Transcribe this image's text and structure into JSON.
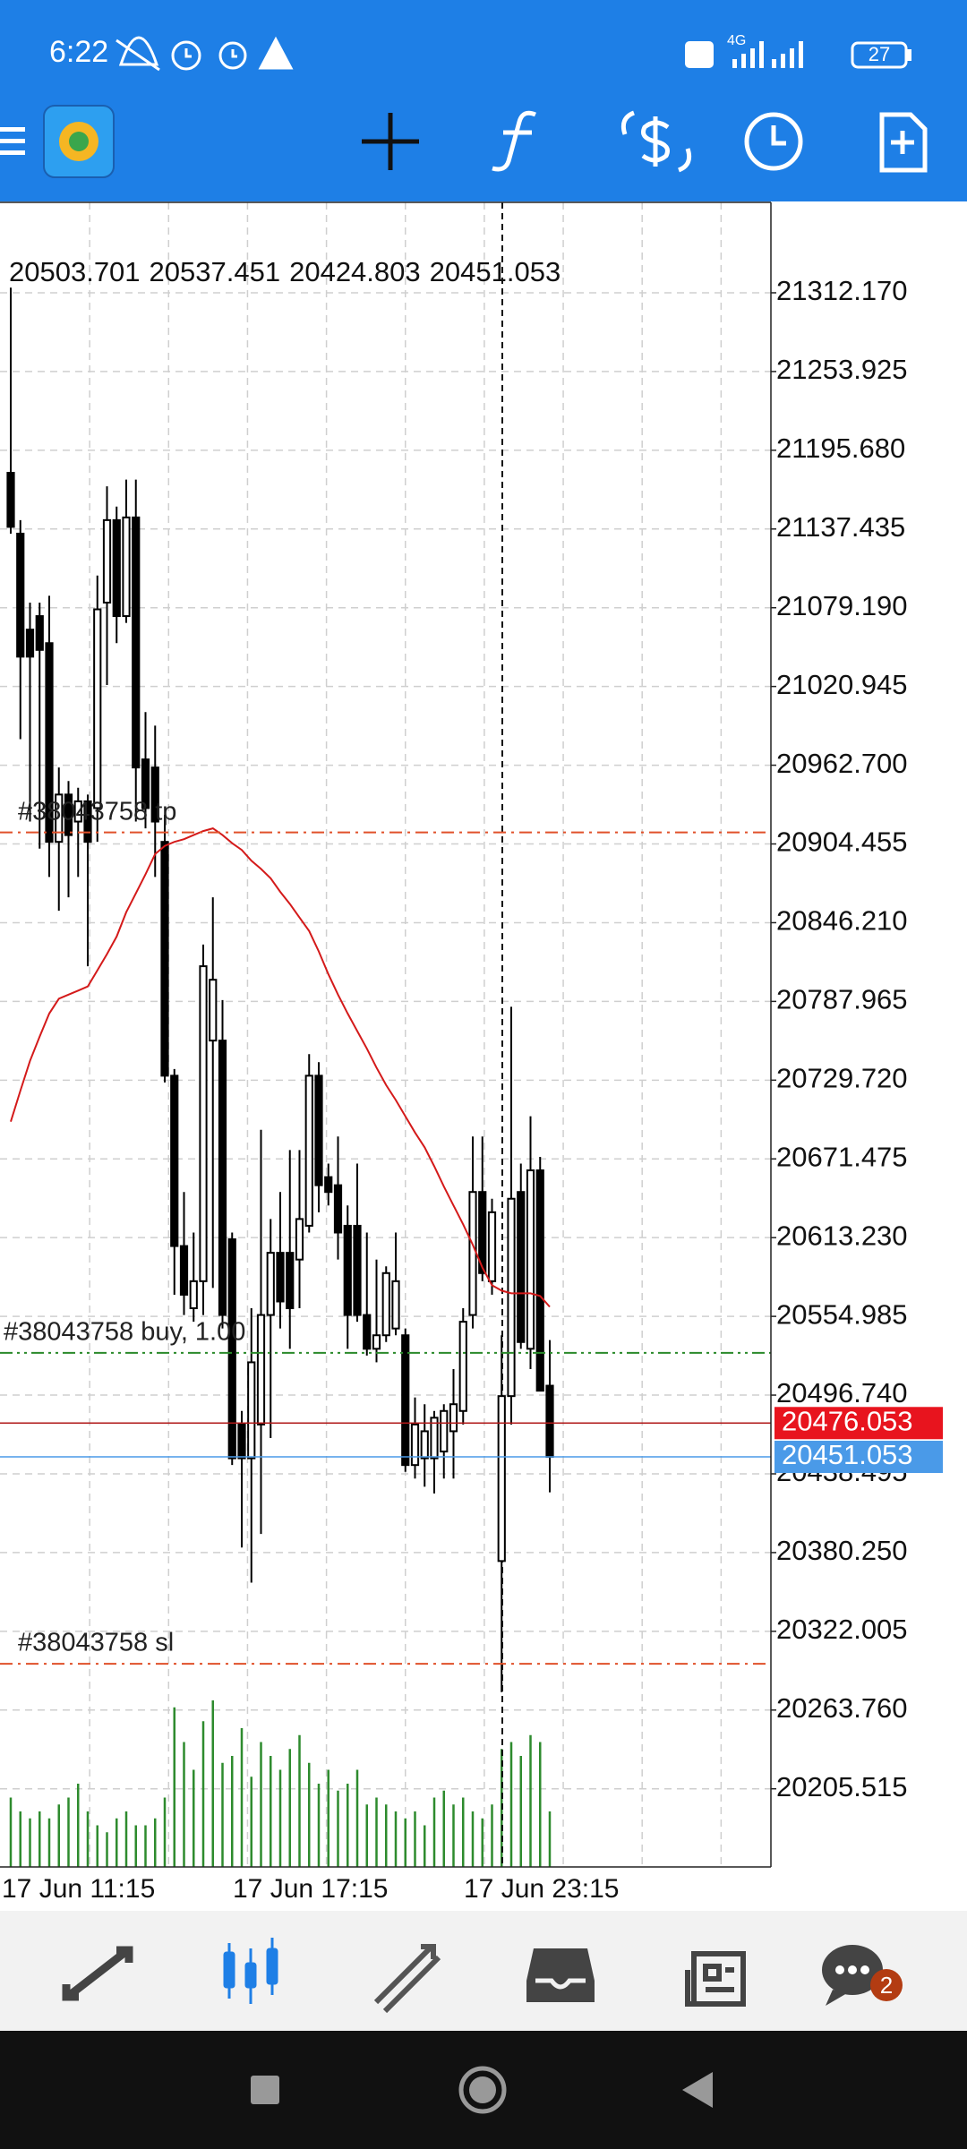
{
  "status_bar": {
    "time": "6:22",
    "network": "4G",
    "battery": "27"
  },
  "bottom_nav": {
    "badge": "2"
  },
  "chart_data": {
    "type": "candlestick",
    "categories": [
      "17 Jun 11:15",
      null,
      null,
      null,
      null,
      null,
      null,
      null,
      null,
      null,
      null,
      null,
      null,
      null,
      null,
      null,
      null,
      null,
      null,
      null,
      null,
      null,
      null,
      null,
      "17 Jun 17:15",
      null,
      null,
      null,
      null,
      null,
      null,
      null,
      null,
      null,
      null,
      null,
      null,
      null,
      null,
      null,
      null,
      null,
      null,
      null,
      null,
      null,
      null,
      null,
      "17 Jun 23:15",
      null,
      null,
      null,
      null,
      null,
      null,
      null,
      null
    ],
    "candles": [
      [
        21179,
        21316,
        21134,
        21139
      ],
      [
        21134,
        21144,
        20982,
        21043
      ],
      [
        21063,
        21083,
        20921,
        21043
      ],
      [
        21073,
        21083,
        20901,
        21048
      ],
      [
        21053,
        21088,
        20880,
        20906
      ],
      [
        20906,
        20961,
        20855,
        20941
      ],
      [
        20941,
        20951,
        20865,
        20911
      ],
      [
        20921,
        20946,
        20880,
        20936
      ],
      [
        20936,
        20941,
        20814,
        20906
      ],
      [
        20931,
        21103,
        20906,
        21078
      ],
      [
        21083,
        21169,
        21022,
        21144
      ],
      [
        21144,
        21154,
        21053,
        21073
      ],
      [
        21073,
        21174,
        21068,
        21146
      ],
      [
        21146,
        21174,
        20921,
        20961
      ],
      [
        20967,
        21002,
        20916,
        20931
      ],
      [
        20961,
        20992,
        20880,
        20921
      ],
      [
        20906,
        20926,
        20728,
        20733
      ],
      [
        20733,
        20738,
        20571,
        20607
      ],
      [
        20607,
        20647,
        20556,
        20571
      ],
      [
        20561,
        20617,
        20551,
        20581
      ],
      [
        20581,
        20830,
        20556,
        20814
      ],
      [
        20759,
        20865,
        20576,
        20804
      ],
      [
        20759,
        20789,
        20546,
        20556
      ],
      [
        20612,
        20617,
        20445,
        20450
      ],
      [
        20475,
        20485,
        20384,
        20450
      ],
      [
        20450,
        20561,
        20358,
        20521
      ],
      [
        20475,
        20693,
        20394,
        20556
      ],
      [
        20556,
        20627,
        20465,
        20602
      ],
      [
        20602,
        20647,
        20546,
        20566
      ],
      [
        20602,
        20678,
        20531,
        20561
      ],
      [
        20597,
        20678,
        20561,
        20627
      ],
      [
        20622,
        20749,
        20617,
        20733
      ],
      [
        20733,
        20743,
        20632,
        20652
      ],
      [
        20658,
        20668,
        20637,
        20647
      ],
      [
        20652,
        20688,
        20597,
        20617
      ],
      [
        20622,
        20637,
        20531,
        20556
      ],
      [
        20622,
        20668,
        20551,
        20556
      ],
      [
        20556,
        20617,
        20526,
        20531
      ],
      [
        20531,
        20597,
        20521,
        20541
      ],
      [
        20541,
        20592,
        20536,
        20587
      ],
      [
        20546,
        20617,
        20541,
        20581
      ],
      [
        20541,
        20546,
        20440,
        20445
      ],
      [
        20445,
        20495,
        20435,
        20475
      ],
      [
        20450,
        20490,
        20429,
        20470
      ],
      [
        20450,
        20485,
        20424,
        20480
      ],
      [
        20455,
        20490,
        20435,
        20485
      ],
      [
        20470,
        20516,
        20435,
        20490
      ],
      [
        20485,
        20561,
        20475,
        20551
      ],
      [
        20556,
        20688,
        20546,
        20647
      ],
      [
        20647,
        20688,
        20581,
        20587
      ],
      [
        20581,
        20642,
        20571,
        20632
      ],
      [
        20374,
        20541,
        20277,
        20496
      ],
      [
        20496,
        20784,
        20475,
        20642
      ],
      [
        20647,
        20668,
        20531,
        20536
      ],
      [
        20531,
        20703,
        20516,
        20663
      ],
      [
        20663,
        20673,
        20500,
        20500
      ],
      [
        20503.701,
        20537.451,
        20424.803,
        20451.053
      ]
    ],
    "colors": {
      "up": "#ffffff",
      "down": "#000000",
      "wick": "#000000"
    },
    "ma": {
      "color": "#d41a1a",
      "values": [
        20699,
        20722,
        20744,
        20762,
        20779,
        20790,
        20793,
        20796,
        20799,
        20811,
        20823,
        20836,
        20854,
        20868,
        20882,
        20897,
        20903,
        20906,
        20908,
        20911,
        20914,
        20916,
        20911,
        20905,
        20900,
        20892,
        20886,
        20879,
        20869,
        20860,
        20850,
        20840,
        20825,
        20808,
        20793,
        20779,
        20766,
        20753,
        20739,
        20726,
        20715,
        20703,
        20691,
        20680,
        20666,
        20651,
        20637,
        20623,
        20608,
        20591,
        20578,
        20574,
        20572,
        20572,
        20572,
        20570,
        20562
      ]
    },
    "volume": {
      "color": "#2e8b2e",
      "values": [
        50,
        40,
        35,
        40,
        35,
        45,
        50,
        60,
        40,
        30,
        25,
        35,
        40,
        30,
        30,
        35,
        50,
        115,
        90,
        70,
        105,
        120,
        75,
        80,
        100,
        65,
        90,
        80,
        70,
        85,
        95,
        75,
        60,
        70,
        55,
        60,
        70,
        45,
        50,
        45,
        40,
        35,
        40,
        30,
        50,
        55,
        45,
        50,
        40,
        35,
        45,
        85,
        90,
        80,
        95,
        90,
        40
      ]
    },
    "ylim": [
      20147.7,
      21379.06
    ],
    "yticks": [
      {
        "value": 21312.17,
        "label": "21312.170"
      },
      21253.925,
      {
        "value": 21195.68,
        "label": "21195.680"
      },
      21137.435,
      {
        "value": 21079.19,
        "label": "21079.190"
      },
      21020.945,
      {
        "value": 20962.7,
        "label": "20962.700"
      },
      20904.455,
      {
        "value": 20846.21,
        "label": "20846.210"
      },
      20787.965,
      {
        "value": 20729.72,
        "label": "20729.720"
      },
      20671.475,
      {
        "value": 20613.23,
        "label": "20613.230"
      },
      20554.985,
      {
        "value": 20496.74,
        "label": "20496.740"
      },
      20438.495,
      {
        "value": 20380.25,
        "label": "20380.250"
      },
      20322.005,
      {
        "value": 20263.76,
        "label": "20263.760"
      },
      20205.515
    ],
    "grid": true,
    "orders": [
      {
        "label": "#38043758 tp",
        "price": 20913,
        "color": "#e0502a",
        "dash": "14 6 3 6"
      },
      {
        "label": "#38043758 buy, 1.00",
        "price": 20528,
        "color": "#2a8a2a",
        "dash": "14 5 3 5 3 5"
      },
      {
        "label": "#38043758 sl",
        "price": 20298,
        "color": "#e0502a",
        "dash": "14 6 3 6"
      }
    ],
    "ask": {
      "value": 20476.053,
      "color": "#e8141e",
      "line_color": "#b01818"
    },
    "bid_color": "#4a9ae8"
  }
}
